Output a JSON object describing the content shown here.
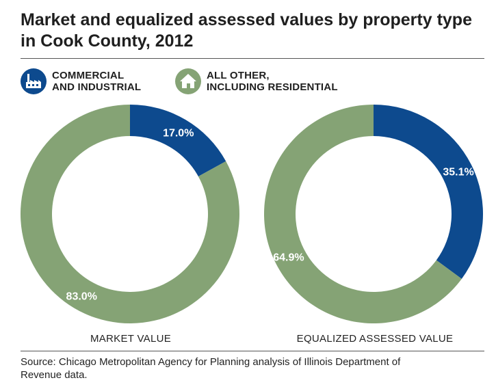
{
  "title_line1": "Market and equalized assessed values by property type",
  "title_line2": "in Cook County, 2012",
  "legend": [
    {
      "line1": "COMMERCIAL",
      "line2": "AND INDUSTRIAL",
      "icon": "factory-icon",
      "color": "#0d4a8e"
    },
    {
      "line1": "ALL OTHER,",
      "line2": "INCLUDING RESIDENTIAL",
      "icon": "house-icon",
      "color": "#85a375"
    }
  ],
  "chart_data": [
    {
      "type": "pie",
      "title": "MARKET VALUE",
      "slices": [
        {
          "name": "COMMERCIAL AND INDUSTRIAL",
          "value": 17.0,
          "label": "17.0%",
          "color": "#0d4a8e"
        },
        {
          "name": "ALL OTHER, INCLUDING RESIDENTIAL",
          "value": 83.0,
          "label": "83.0%",
          "color": "#85a375"
        }
      ]
    },
    {
      "type": "pie",
      "title": "EQUALIZED ASSESSED VALUE",
      "slices": [
        {
          "name": "COMMERCIAL AND INDUSTRIAL",
          "value": 35.1,
          "label": "35.1%",
          "color": "#0d4a8e"
        },
        {
          "name": "ALL OTHER, INCLUDING RESIDENTIAL",
          "value": 64.9,
          "label": "64.9%",
          "color": "#85a375"
        }
      ]
    }
  ],
  "source_line1": "Source: Chicago Metropolitan Agency for Planning analysis of Illinois Department of",
  "source_line2": "Revenue data."
}
